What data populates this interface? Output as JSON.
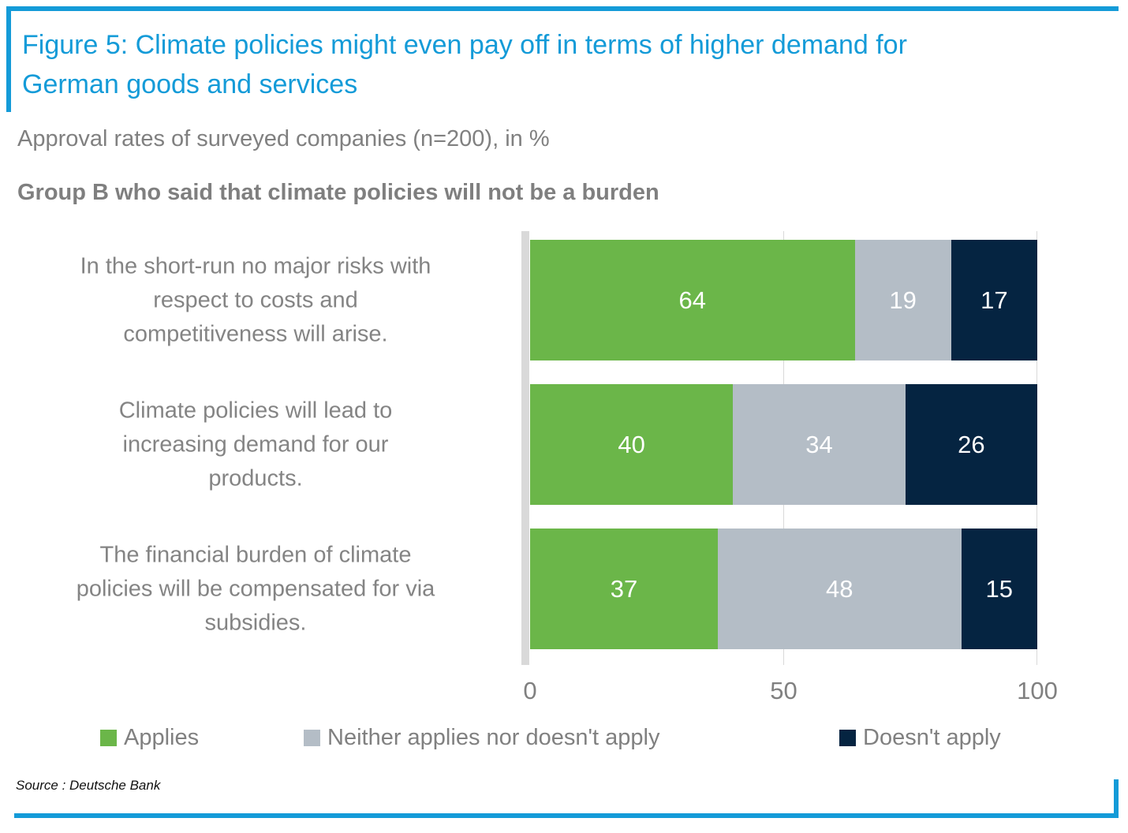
{
  "header": {
    "title": "Figure 5: Climate policies might even pay off in terms of higher demand for\nGerman goods and services",
    "subtitle": "Approval rates of surveyed companies (n=200), in %",
    "group_label": "Group B who said that climate policies will not be a burden"
  },
  "chart_data": {
    "type": "bar",
    "orientation": "horizontal",
    "stacked": true,
    "title": "Figure 5: Climate policies might even pay off in terms of higher demand for German goods and services",
    "subtitle": "Approval rates of surveyed companies (n=200), in %",
    "group": "Group B who said that climate policies will not be a burden",
    "categories": [
      "In the short-run no major risks with\nrespect to costs and\ncompetitiveness will arise.",
      "Climate policies will lead to\nincreasing demand for our\nproducts.",
      "The financial burden of climate\npolicies will be compensated for via\nsubsidies."
    ],
    "series": [
      {
        "name": "Applies",
        "color": "#6bb649",
        "values": [
          64,
          40,
          37
        ]
      },
      {
        "name": "Neither applies nor doesn't apply",
        "color": "#b4bdc6",
        "values": [
          19,
          34,
          48
        ]
      },
      {
        "name": "Doesn't apply",
        "color": "#052441",
        "values": [
          17,
          26,
          15
        ]
      }
    ],
    "x_axis": {
      "min": 0,
      "max": 100,
      "ticks": [
        0,
        50,
        100
      ]
    },
    "value_labels": "inside, white",
    "legend_position": "bottom",
    "grid": "vertical lines at ticks"
  },
  "footer": {
    "source": "Source : Deutsche Bank"
  },
  "style": {
    "accent_blue": "#149bd8",
    "text_gray": "#808080",
    "axis_gray": "#d9d9d9"
  }
}
